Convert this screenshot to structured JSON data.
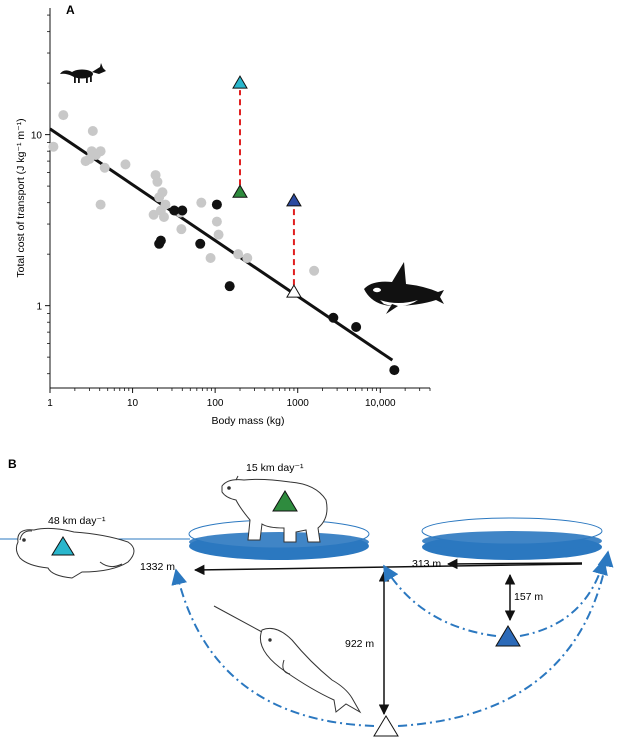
{
  "panel_a_label": "A",
  "panel_b_label": "B",
  "chart_data": {
    "type": "scatter",
    "title": "",
    "xlabel": "Body mass (kg)",
    "ylabel": "Total cost of transport (J kg⁻¹ m⁻¹)",
    "xscale": "log",
    "yscale": "log",
    "xlim": [
      1,
      40000
    ],
    "ylim": [
      0.33,
      55
    ],
    "x_ticks": [
      1,
      10,
      100,
      1000,
      10000
    ],
    "x_tick_labels": [
      "1",
      "10",
      "100",
      "1000",
      "10,000"
    ],
    "y_ticks": [
      1,
      10
    ],
    "y_tick_labels": [
      "1",
      "10"
    ],
    "series": [
      {
        "name": "terrestrial mammals",
        "color": "#c8c8c8",
        "points": [
          [
            1.1,
            8.5
          ],
          [
            1.45,
            13
          ],
          [
            2.7,
            7
          ],
          [
            3.0,
            7.2
          ],
          [
            3.3,
            10.5
          ],
          [
            3.2,
            8.0
          ],
          [
            4.1,
            8.0
          ],
          [
            3.6,
            7.6
          ],
          [
            4.6,
            6.4
          ],
          [
            4.1,
            3.9
          ],
          [
            8.2,
            6.7
          ],
          [
            19,
            5.8
          ],
          [
            20,
            5.3
          ],
          [
            23,
            4.6
          ],
          [
            21,
            4.3
          ],
          [
            22,
            3.6
          ],
          [
            24,
            3.3
          ],
          [
            18,
            3.4
          ],
          [
            25,
            3.9
          ],
          [
            38,
            3.5
          ],
          [
            39,
            2.8
          ],
          [
            68,
            4.0
          ],
          [
            105,
            3.1
          ],
          [
            110,
            2.6
          ],
          [
            88,
            1.9
          ],
          [
            190,
            2.0
          ],
          [
            245,
            1.9
          ],
          [
            1580,
            1.6
          ]
        ]
      },
      {
        "name": "marine mammals",
        "color": "#111111",
        "points": [
          [
            21,
            2.3
          ],
          [
            22,
            2.4
          ],
          [
            32,
            3.6
          ],
          [
            40,
            3.6
          ],
          [
            66,
            2.3
          ],
          [
            105,
            3.9
          ],
          [
            150,
            1.3
          ],
          [
            2700,
            0.85
          ],
          [
            5100,
            0.75
          ],
          [
            14800,
            0.42
          ]
        ]
      }
    ],
    "regression": {
      "x": [
        1,
        14000
      ],
      "y": [
        10.8,
        0.48
      ]
    },
    "highlights": [
      {
        "name": "polar bear swimming",
        "x": 200,
        "y": 20,
        "color": "#29b6cc"
      },
      {
        "name": "polar bear walking",
        "x": 200,
        "y": 4.6,
        "color": "#2e8b3e"
      },
      {
        "name": "narwhal dive",
        "x": 900,
        "y": 4.1,
        "color": "#2c4aa0"
      },
      {
        "name": "narwhal predicted",
        "x": 900,
        "y": 1.2,
        "color": "#ffffff"
      }
    ],
    "connectors": [
      {
        "x": 200,
        "from": 4.6,
        "to": 20,
        "color": "#e02020"
      },
      {
        "x": 900,
        "from": 1.2,
        "to": 4.1,
        "color": "#e02020"
      }
    ]
  },
  "diagram": {
    "swim_speed": "48 km day⁻¹",
    "walk_speed": "15 km day⁻¹",
    "dist_1332": "1332 m",
    "dist_313": "313 m",
    "depth_157": "157 m",
    "depth_922": "922 m",
    "colors": {
      "water": "#2b78c0",
      "water_light": "#7fb0e0",
      "dash_arrow": "#2b78c0",
      "teal": "#29b6cc",
      "green": "#2e8b3e",
      "blue": "#2c6ab8"
    }
  },
  "icons": [
    "fox-icon",
    "orca-icon",
    "polar-bear-swimming-icon",
    "polar-bear-standing-icon",
    "narwhal-icon"
  ]
}
